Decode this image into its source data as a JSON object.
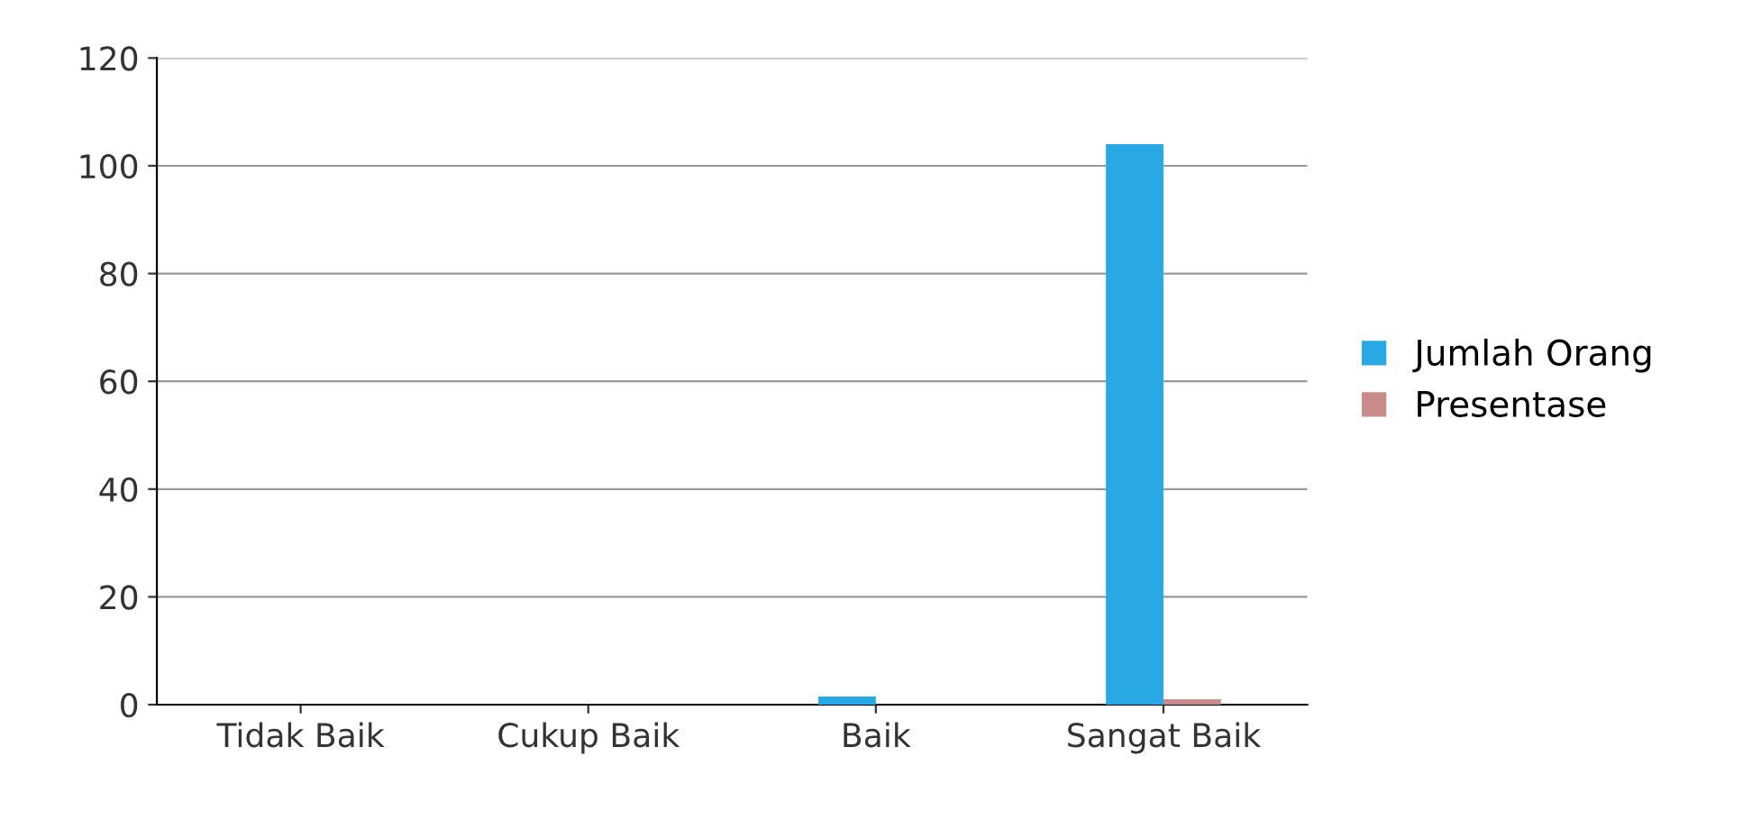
{
  "chart_data": {
    "type": "bar",
    "categories": [
      "Tidak Baik",
      "Cukup Baik",
      "Baik",
      "Sangat Baik"
    ],
    "series": [
      {
        "name": "Jumlah Orang",
        "color": "#29a8e6",
        "values": [
          0,
          0,
          1.5,
          104
        ]
      },
      {
        "name": "Presentase",
        "color": "#c98a8a",
        "values": [
          0,
          0,
          0,
          1
        ]
      }
    ],
    "ylim": [
      0,
      120
    ],
    "yticks": [
      0,
      20,
      40,
      60,
      80,
      100,
      120
    ],
    "grid": "y",
    "legend": "right"
  }
}
